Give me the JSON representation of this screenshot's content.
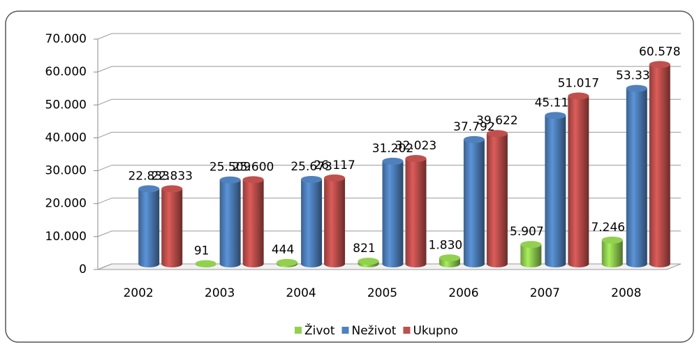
{
  "chart_data": {
    "type": "bar3d",
    "categories": [
      "2002",
      "2003",
      "2004",
      "2005",
      "2006",
      "2007",
      "2008"
    ],
    "series": [
      {
        "name": "Život",
        "color": "#92d050",
        "values": [
          null,
          91,
          444,
          821,
          1830,
          5907,
          7246
        ],
        "value_labels": [
          null,
          "91",
          "444",
          "821",
          "1.830",
          "5.907",
          "7.246"
        ]
      },
      {
        "name": "Neživot",
        "color": "#4f81bd",
        "values": [
          22833,
          25509,
          25673,
          31202,
          37792,
          45110,
          53332
        ],
        "value_labels": [
          "22.833",
          "25.509",
          "25.673",
          "31.202",
          "37.792",
          "45.110",
          "53.332"
        ]
      },
      {
        "name": "Ukupno",
        "color": "#c0504d",
        "values": [
          22833,
          25600,
          26117,
          32023,
          39622,
          51017,
          60578
        ],
        "value_labels": [
          "22.833",
          "25.600",
          "26.117",
          "32.023",
          "39.622",
          "51.017",
          "60.578"
        ]
      }
    ],
    "ylim": [
      0,
      70000
    ],
    "yticks": [
      0,
      {
        "value": 10000,
        "label": "10.000"
      },
      {
        "value": 20000,
        "label": "20.000"
      },
      {
        "value": 30000,
        "label": "30.000"
      },
      {
        "value": 40000,
        "label": "40.000"
      },
      {
        "value": 50000,
        "label": "50.000"
      },
      {
        "value": 60000,
        "label": "60.000"
      },
      {
        "value": 70000,
        "label": "70.000"
      }
    ],
    "grid": true,
    "legend": "bottom"
  }
}
